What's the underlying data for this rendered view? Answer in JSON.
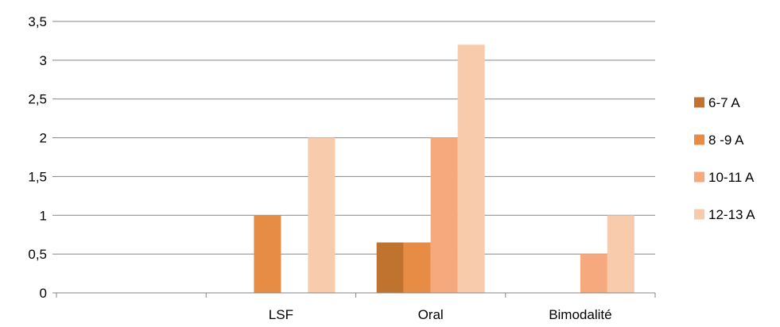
{
  "chart_data": {
    "type": "bar",
    "title": "",
    "xlabel": "",
    "ylabel": "",
    "categories": [
      "",
      "LSF",
      "Oral",
      "Bimodalité"
    ],
    "series": [
      {
        "name": "6-7 A",
        "values": [
          0,
          0,
          0.65,
          0
        ],
        "color": "#C0722F"
      },
      {
        "name": "8 -9 A",
        "values": [
          0,
          1,
          0.65,
          0
        ],
        "color": "#E68C45"
      },
      {
        "name": "10-11 A",
        "values": [
          0,
          0,
          2,
          0.5
        ],
        "color": "#F5A97C"
      },
      {
        "name": "12-13 A",
        "values": [
          0,
          2,
          3.2,
          1
        ],
        "color": "#F8CBAD"
      }
    ],
    "ylim": [
      0,
      3.5
    ],
    "yticks": [
      "0",
      "0,5",
      "1",
      "1,5",
      "2",
      "2,5",
      "3",
      "3,5"
    ],
    "grid": true,
    "legend_position": "right"
  }
}
